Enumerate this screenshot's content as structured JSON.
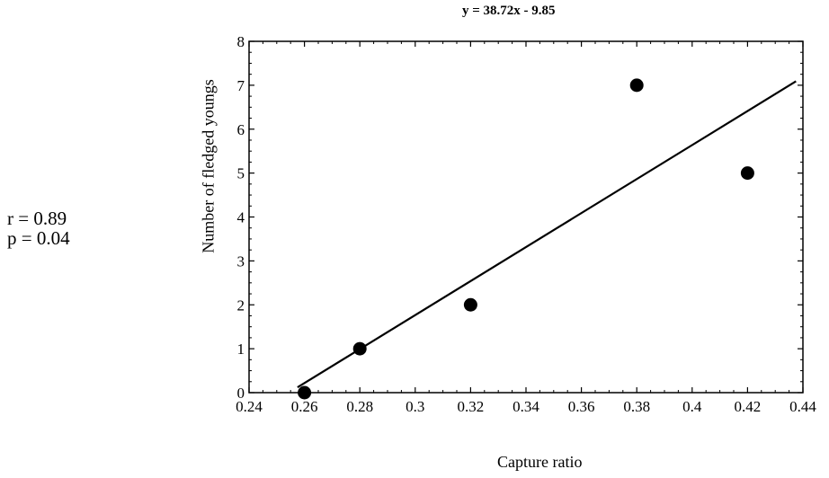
{
  "stats": {
    "r": "r = 0.89",
    "p": "p = 0.04"
  },
  "chart_data": {
    "type": "scatter",
    "title": "y = 38.72x - 9.85",
    "xlabel": "Capture ratio",
    "ylabel": "Number of fledged youngs",
    "xlim": [
      0.24,
      0.44
    ],
    "ylim": [
      0,
      8
    ],
    "x_ticks": [
      "0.24",
      "0.26",
      "0.28",
      "0.3",
      "0.32",
      "0.34",
      "0.36",
      "0.38",
      "0.4",
      "0.42",
      "0.44"
    ],
    "y_ticks": [
      "0",
      "1",
      "2",
      "3",
      "4",
      "5",
      "6",
      "7",
      "8"
    ],
    "points": [
      {
        "x": 0.26,
        "y": 0
      },
      {
        "x": 0.28,
        "y": 1
      },
      {
        "x": 0.32,
        "y": 2
      },
      {
        "x": 0.38,
        "y": 7
      },
      {
        "x": 0.42,
        "y": 5
      }
    ],
    "regression": {
      "slope": 38.72,
      "intercept": -9.85,
      "x_start": 0.2575,
      "x_end": 0.4375
    },
    "grid": false,
    "legend": "none",
    "colors": {
      "marker": "#000000",
      "line": "#000000",
      "frame": "#000000"
    }
  }
}
